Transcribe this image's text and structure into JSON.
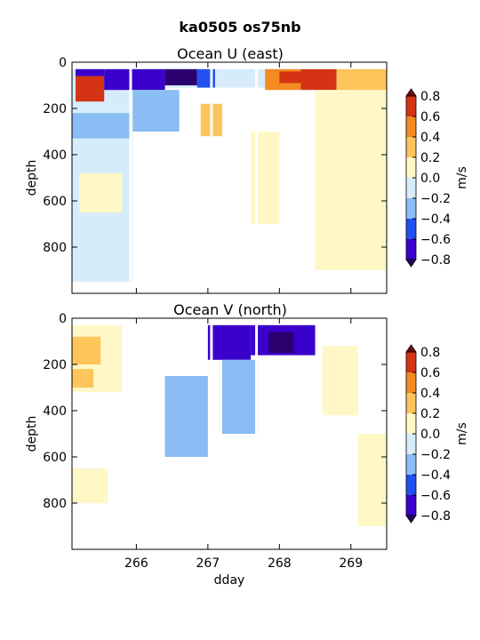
{
  "figure": {
    "title": "ka0505 os75nb"
  },
  "chart_data": [
    {
      "type": "heatmap",
      "title": "Ocean U (east)",
      "ylabel": "depth",
      "xlabel": "",
      "xlim": [
        265.1,
        269.5
      ],
      "ylim": [
        1000,
        0
      ],
      "y_ticks": [
        "0",
        "200",
        "400",
        "600",
        "800"
      ],
      "x_ticks": [
        266,
        267,
        268,
        269
      ],
      "data_gaps_dday": [
        265.92,
        267.05,
        267.68
      ],
      "colorbar": {
        "label": "m/s",
        "ticks": [
          "0.8",
          "0.6",
          "0.4",
          "0.2",
          "0.0",
          "−0.2",
          "−0.4",
          "−0.6",
          "−0.8"
        ],
        "levels": [
          -0.8,
          -0.6,
          -0.4,
          -0.2,
          0.0,
          0.2,
          0.4,
          0.6,
          0.8
        ],
        "colors": [
          "#3a00cc",
          "#2350ef",
          "#89bdf3",
          "#d7ecfb",
          "#fff7c6",
          "#fdc55a",
          "#f38a22",
          "#d43414"
        ],
        "extend_low": "#2a006f",
        "extend_high": "#7a0a0a"
      },
      "regions": [
        {
          "dday": [
            265.1,
            265.95
          ],
          "depth": [
            30,
            950
          ],
          "value": -0.05
        },
        {
          "dday": [
            265.1,
            269.5
          ],
          "depth": [
            30,
            110
          ],
          "value": -0.1
        },
        {
          "dday": [
            265.15,
            265.55
          ],
          "depth": [
            60,
            170
          ],
          "value": 0.7
        },
        {
          "dday": [
            265.15,
            265.55
          ],
          "depth": [
            30,
            60
          ],
          "value": -0.65
        },
        {
          "dday": [
            265.55,
            266.4
          ],
          "depth": [
            30,
            120
          ],
          "value": -0.7
        },
        {
          "dday": [
            266.4,
            266.85
          ],
          "depth": [
            30,
            100
          ],
          "value": -0.85
        },
        {
          "dday": [
            266.85,
            267.1
          ],
          "depth": [
            30,
            110
          ],
          "value": -0.5
        },
        {
          "dday": [
            265.95,
            266.6
          ],
          "depth": [
            120,
            300
          ],
          "value": -0.3
        },
        {
          "dday": [
            265.1,
            265.9
          ],
          "depth": [
            220,
            330
          ],
          "value": -0.3
        },
        {
          "dday": [
            265.2,
            265.8
          ],
          "depth": [
            480,
            650
          ],
          "value": 0.05
        },
        {
          "dday": [
            266.9,
            267.2
          ],
          "depth": [
            180,
            320
          ],
          "value": 0.3
        },
        {
          "dday": [
            267.8,
            268.3
          ],
          "depth": [
            30,
            120
          ],
          "value": 0.45
        },
        {
          "dday": [
            268.3,
            268.8
          ],
          "depth": [
            30,
            120
          ],
          "value": 0.6
        },
        {
          "dday": [
            268.8,
            269.5
          ],
          "depth": [
            30,
            120
          ],
          "value": 0.35
        },
        {
          "dday": [
            268.0,
            268.5
          ],
          "depth": [
            40,
            90
          ],
          "value": 0.75
        },
        {
          "dday": [
            268.5,
            269.5
          ],
          "depth": [
            120,
            900
          ],
          "value": 0.05
        },
        {
          "dday": [
            267.6,
            268.0
          ],
          "depth": [
            300,
            700
          ],
          "value": 0.05
        }
      ]
    },
    {
      "type": "heatmap",
      "title": "Ocean V (north)",
      "ylabel": "depth",
      "xlabel": "dday",
      "xlim": [
        265.1,
        269.5
      ],
      "ylim": [
        1000,
        0
      ],
      "y_ticks": [
        "0",
        "200",
        "400",
        "600",
        "800"
      ],
      "x_ticks": [
        266,
        267,
        268,
        269
      ],
      "x_tick_labels": [
        "266",
        "267",
        "268",
        "269"
      ],
      "data_gaps_dday": [
        265.92,
        267.05,
        267.68
      ],
      "colorbar": {
        "label": "m/s",
        "ticks": [
          "0.8",
          "0.6",
          "0.4",
          "0.2",
          "0.0",
          "−0.2",
          "−0.4",
          "−0.6",
          "−0.8"
        ],
        "levels": [
          -0.8,
          -0.6,
          -0.4,
          -0.2,
          0.0,
          0.2,
          0.4,
          0.6,
          0.8
        ],
        "colors": [
          "#3a00cc",
          "#2350ef",
          "#89bdf3",
          "#d7ecfb",
          "#fff7c6",
          "#fdc55a",
          "#f38a22",
          "#d43414"
        ],
        "extend_low": "#2a006f",
        "extend_high": "#7a0a0a"
      },
      "regions": [
        {
          "dday": [
            265.1,
            265.8
          ],
          "depth": [
            30,
            320
          ],
          "value": 0.05
        },
        {
          "dday": [
            265.1,
            265.5
          ],
          "depth": [
            80,
            200
          ],
          "value": 0.25
        },
        {
          "dday": [
            265.1,
            265.4
          ],
          "depth": [
            220,
            300
          ],
          "value": 0.25
        },
        {
          "dday": [
            265.1,
            265.6
          ],
          "depth": [
            650,
            800
          ],
          "value": 0.05
        },
        {
          "dday": [
            266.4,
            267.0
          ],
          "depth": [
            250,
            600
          ],
          "value": -0.25
        },
        {
          "dday": [
            267.0,
            267.6
          ],
          "depth": [
            30,
            180
          ],
          "value": -0.7
        },
        {
          "dday": [
            267.6,
            268.5
          ],
          "depth": [
            30,
            160
          ],
          "value": -0.65
        },
        {
          "dday": [
            267.85,
            268.2
          ],
          "depth": [
            60,
            150
          ],
          "value": -0.9
        },
        {
          "dday": [
            267.2,
            267.7
          ],
          "depth": [
            180,
            500
          ],
          "value": -0.25
        },
        {
          "dday": [
            268.6,
            269.1
          ],
          "depth": [
            120,
            420
          ],
          "value": 0.05
        },
        {
          "dday": [
            269.1,
            269.5
          ],
          "depth": [
            500,
            900
          ],
          "value": 0.05
        }
      ]
    }
  ]
}
